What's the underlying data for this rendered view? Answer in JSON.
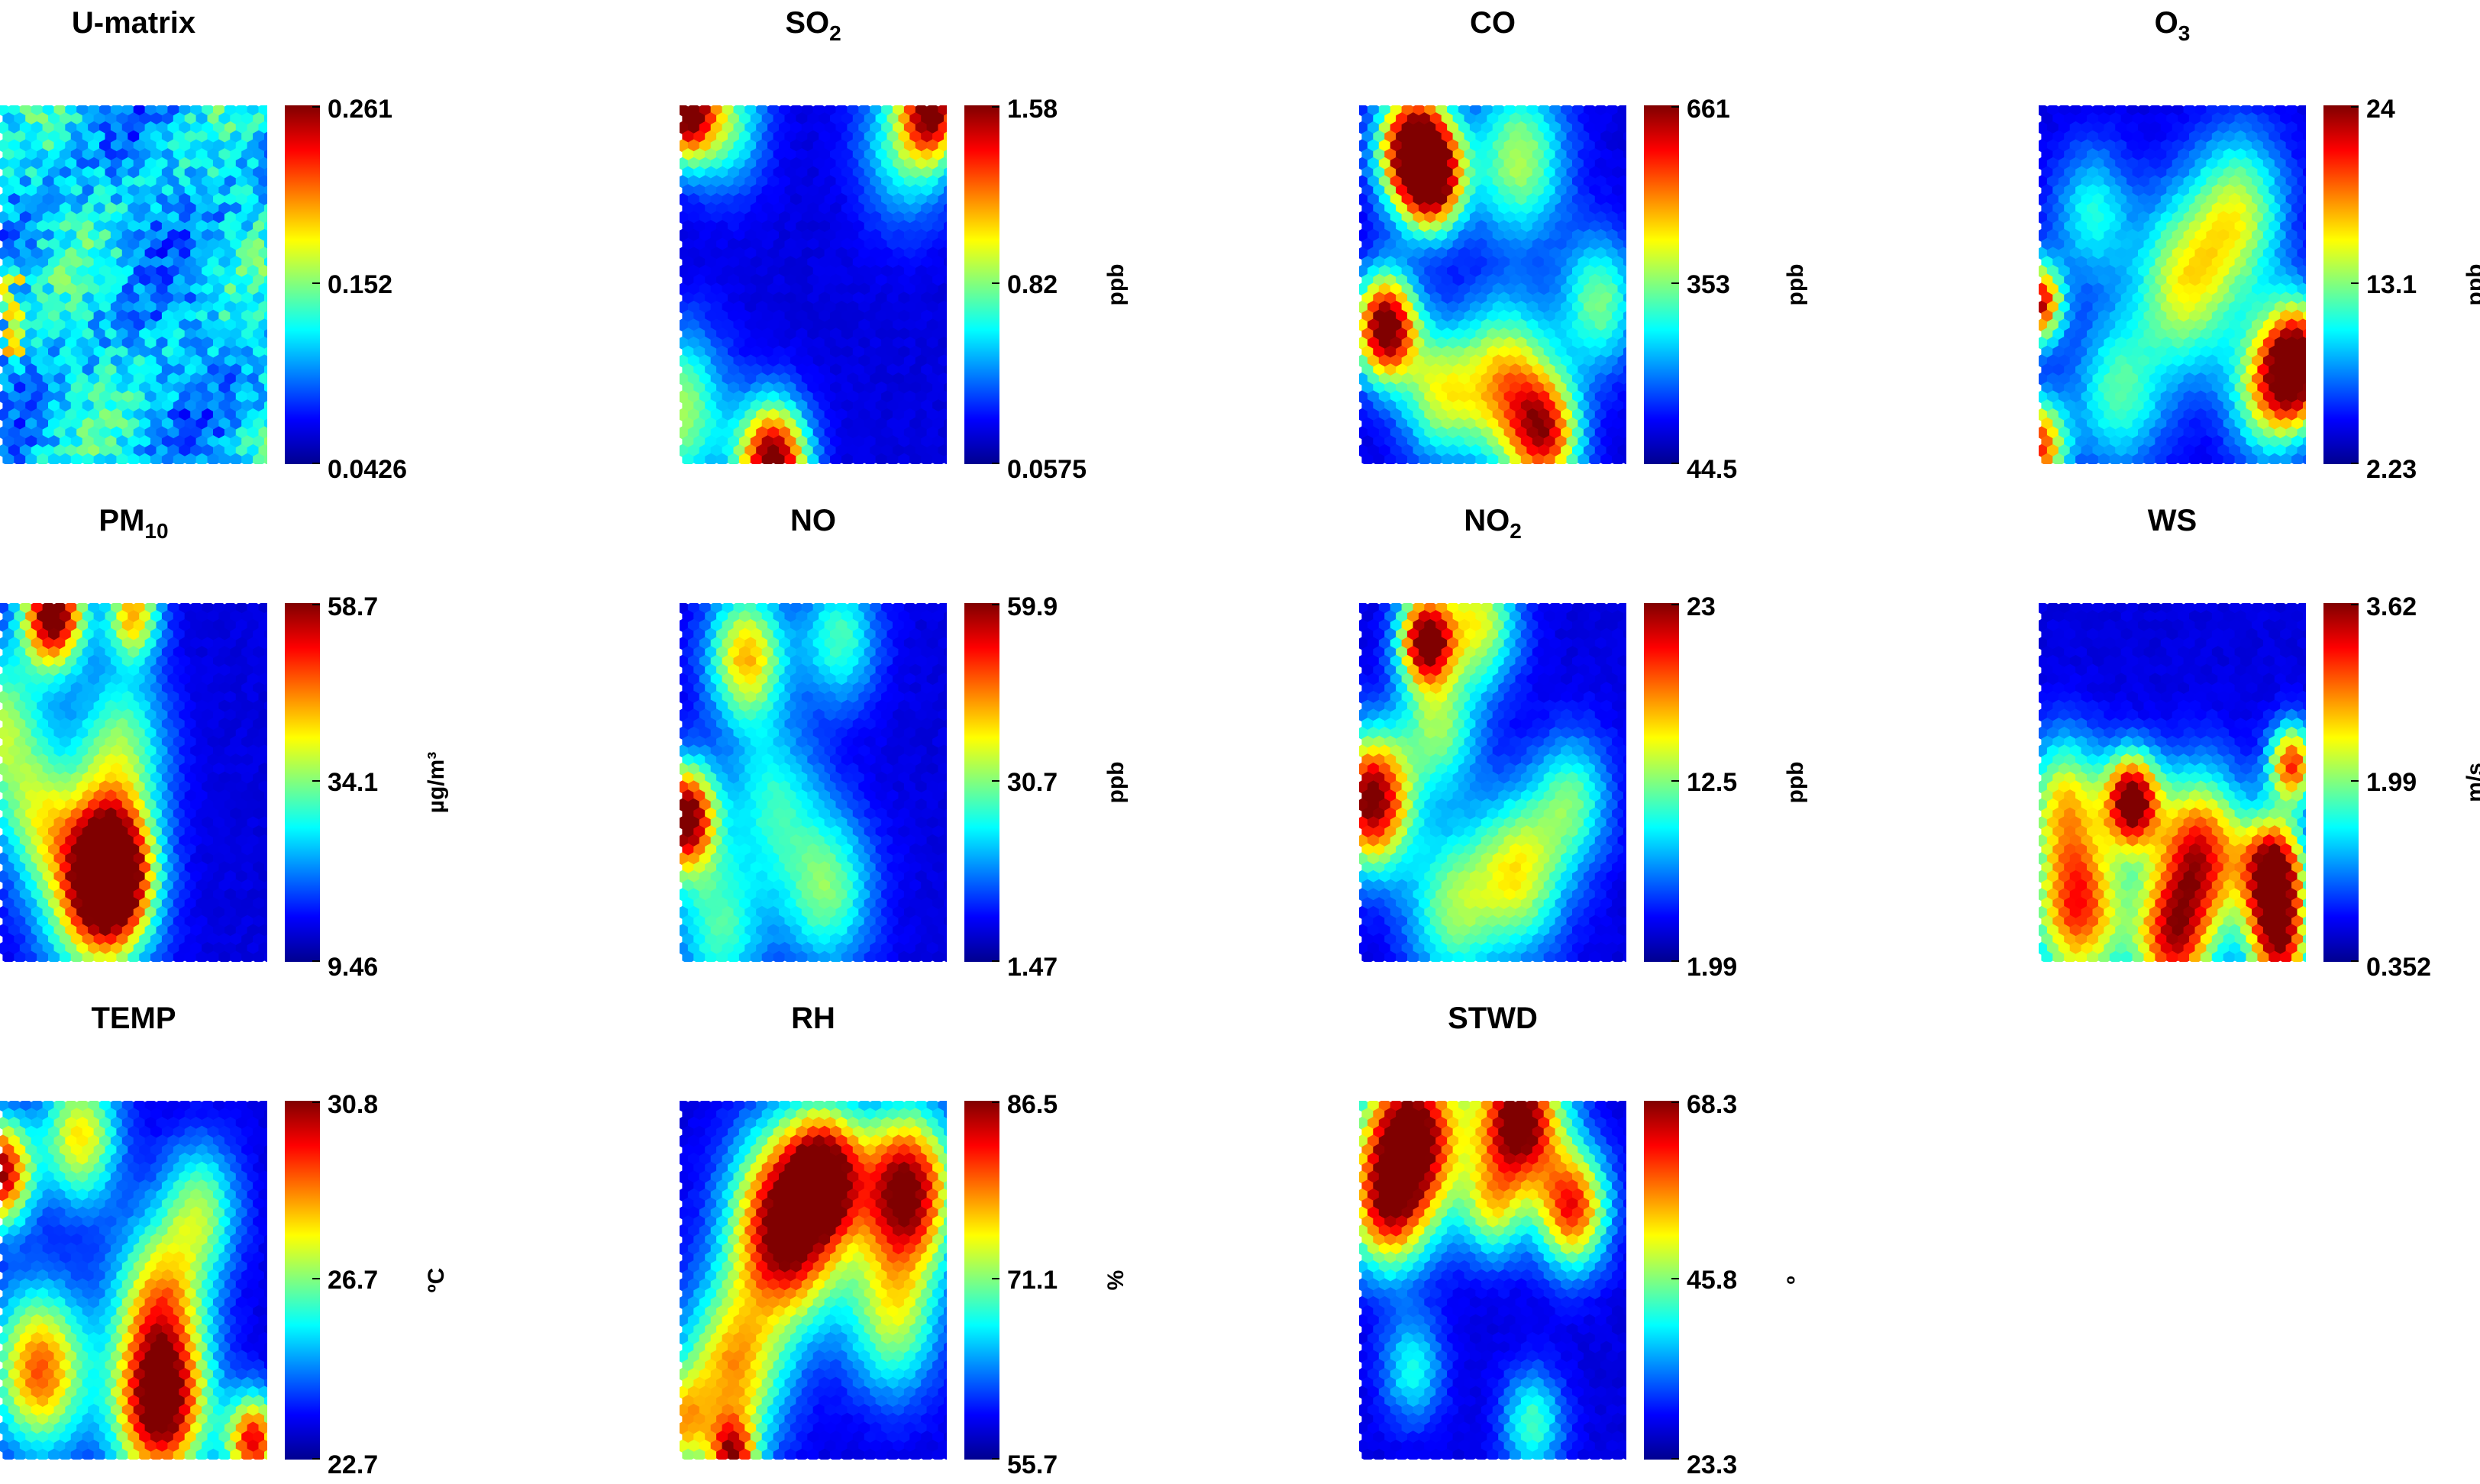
{
  "chart_data": [
    {
      "type": "heatmap",
      "title": "U-matrix",
      "title_sub": "",
      "unit": "",
      "colorbar_ticks": [
        "0.261",
        "0.152",
        "0.0426"
      ],
      "range": [
        0.0426,
        0.261
      ],
      "colormap": "jet",
      "blobs": []
    },
    {
      "type": "heatmap",
      "title": "SO",
      "title_sub": "2",
      "unit": "ppb",
      "colorbar_ticks": [
        "1.58",
        "0.82",
        "0.0575"
      ],
      "range": [
        0.0575,
        1.58
      ],
      "colormap": "jet",
      "blobs": [
        [
          0.02,
          0.0,
          1.0,
          0.08
        ],
        [
          0.95,
          0.0,
          0.8,
          0.08
        ],
        [
          0.35,
          1.0,
          1.0,
          0.09
        ],
        [
          0.0,
          0.85,
          0.45,
          0.12
        ],
        [
          0.85,
          0.1,
          0.35,
          0.12
        ],
        [
          0.18,
          0.05,
          0.35,
          0.1
        ]
      ]
    },
    {
      "type": "heatmap",
      "title": "CO",
      "title_sub": "",
      "unit": "ppb",
      "colorbar_ticks": [
        "661",
        "353",
        "44.5"
      ],
      "range": [
        44.5,
        661
      ],
      "colormap": "jet",
      "blobs": [
        [
          0.2,
          0.12,
          0.95,
          0.09
        ],
        [
          0.28,
          0.2,
          0.85,
          0.08
        ],
        [
          0.1,
          0.62,
          1.0,
          0.08
        ],
        [
          0.55,
          0.78,
          0.6,
          0.12
        ],
        [
          0.7,
          0.92,
          0.7,
          0.09
        ],
        [
          0.6,
          0.15,
          0.45,
          0.12
        ],
        [
          0.3,
          0.8,
          0.45,
          0.1
        ],
        [
          0.9,
          0.55,
          0.4,
          0.1
        ]
      ]
    },
    {
      "type": "heatmap",
      "title": "O",
      "title_sub": "3",
      "unit": "ppb",
      "colorbar_ticks": [
        "24",
        "13.1",
        "2.23"
      ],
      "range": [
        2.23,
        24
      ],
      "colormap": "jet",
      "blobs": [
        [
          0.97,
          0.72,
          1.0,
          0.09
        ],
        [
          0.0,
          0.55,
          0.85,
          0.06
        ],
        [
          0.55,
          0.5,
          0.5,
          0.13
        ],
        [
          0.75,
          0.3,
          0.45,
          0.12
        ],
        [
          0.0,
          0.95,
          0.75,
          0.07
        ],
        [
          0.3,
          0.8,
          0.35,
          0.12
        ],
        [
          0.85,
          0.8,
          0.45,
          0.1
        ],
        [
          0.2,
          0.3,
          0.3,
          0.1
        ]
      ]
    },
    {
      "type": "heatmap",
      "title": "PM",
      "title_sub": "10",
      "unit": "µg/m³",
      "colorbar_ticks": [
        "58.7",
        "34.1",
        "9.46"
      ],
      "range": [
        9.46,
        58.7
      ],
      "colormap": "jet",
      "blobs": [
        [
          0.2,
          0.03,
          1.0,
          0.08
        ],
        [
          0.5,
          0.03,
          0.6,
          0.07
        ],
        [
          0.42,
          0.75,
          1.0,
          0.1
        ],
        [
          0.35,
          0.8,
          0.6,
          0.14
        ],
        [
          0.0,
          0.35,
          0.45,
          0.12
        ],
        [
          0.45,
          0.4,
          0.4,
          0.12
        ],
        [
          0.15,
          0.6,
          0.35,
          0.1
        ]
      ]
    },
    {
      "type": "heatmap",
      "title": "NO",
      "title_sub": "",
      "unit": "ppb",
      "colorbar_ticks": [
        "59.9",
        "30.7",
        "1.47"
      ],
      "range": [
        1.47,
        59.9
      ],
      "colormap": "jet",
      "blobs": [
        [
          0.02,
          0.6,
          1.0,
          0.08
        ],
        [
          0.25,
          0.15,
          0.6,
          0.1
        ],
        [
          0.55,
          0.8,
          0.4,
          0.12
        ],
        [
          0.15,
          0.9,
          0.35,
          0.12
        ],
        [
          0.6,
          0.1,
          0.35,
          0.1
        ],
        [
          0.35,
          0.55,
          0.3,
          0.12
        ]
      ]
    },
    {
      "type": "heatmap",
      "title": "NO",
      "title_sub": "2",
      "unit": "ppb",
      "colorbar_ticks": [
        "23",
        "12.5",
        "1.99"
      ],
      "range": [
        1.99,
        23
      ],
      "colormap": "jet",
      "blobs": [
        [
          0.25,
          0.1,
          0.95,
          0.07
        ],
        [
          0.05,
          0.55,
          0.95,
          0.1
        ],
        [
          0.45,
          0.05,
          0.5,
          0.1
        ],
        [
          0.6,
          0.75,
          0.5,
          0.12
        ],
        [
          0.35,
          0.85,
          0.4,
          0.12
        ],
        [
          0.8,
          0.55,
          0.35,
          0.1
        ],
        [
          0.3,
          0.35,
          0.4,
          0.1
        ]
      ]
    },
    {
      "type": "heatmap",
      "title": "WS",
      "title_sub": "",
      "unit": "m/s",
      "colorbar_ticks": [
        "3.62",
        "1.99",
        "0.352"
      ],
      "range": [
        0.352,
        3.62
      ],
      "colormap": "jet",
      "blobs": [
        [
          0.35,
          0.55,
          0.95,
          0.07
        ],
        [
          0.88,
          0.75,
          1.0,
          0.08
        ],
        [
          0.6,
          0.7,
          0.8,
          0.12
        ],
        [
          0.15,
          0.85,
          0.75,
          0.12
        ],
        [
          0.5,
          0.95,
          0.7,
          0.1
        ],
        [
          0.95,
          0.45,
          0.75,
          0.06
        ],
        [
          0.9,
          0.95,
          0.8,
          0.08
        ],
        [
          0.1,
          0.55,
          0.5,
          0.1
        ]
      ]
    },
    {
      "type": "heatmap",
      "title": "TEMP",
      "title_sub": "",
      "unit": "ºC",
      "colorbar_ticks": [
        "30.8",
        "26.7",
        "22.7"
      ],
      "range": [
        22.7,
        30.8
      ],
      "colormap": "jet",
      "blobs": [
        [
          0.6,
          0.85,
          1.0,
          0.12
        ],
        [
          0.0,
          0.2,
          0.9,
          0.08
        ],
        [
          0.3,
          0.1,
          0.55,
          0.1
        ],
        [
          0.15,
          0.75,
          0.7,
          0.12
        ],
        [
          0.6,
          0.55,
          0.55,
          0.12
        ],
        [
          0.95,
          0.95,
          0.8,
          0.07
        ],
        [
          0.75,
          0.3,
          0.4,
          0.1
        ]
      ]
    },
    {
      "type": "heatmap",
      "title": "RH",
      "title_sub": "",
      "unit": "%",
      "colorbar_ticks": [
        "86.5",
        "71.1",
        "55.7"
      ],
      "range": [
        55.7,
        86.5
      ],
      "colormap": "jet",
      "blobs": [
        [
          0.4,
          0.35,
          1.0,
          0.14
        ],
        [
          0.85,
          0.25,
          0.95,
          0.12
        ],
        [
          0.55,
          0.2,
          0.75,
          0.1
        ],
        [
          0.2,
          0.75,
          0.6,
          0.13
        ],
        [
          0.0,
          0.9,
          0.5,
          0.08
        ],
        [
          0.8,
          0.6,
          0.45,
          0.12
        ],
        [
          0.2,
          1.0,
          0.7,
          0.06
        ]
      ]
    },
    {
      "type": "heatmap",
      "title": "STWD",
      "title_sub": "",
      "unit": "º",
      "colorbar_ticks": [
        "68.3",
        "45.8",
        "23.3"
      ],
      "range": [
        23.3,
        68.3
      ],
      "colormap": "jet",
      "blobs": [
        [
          0.2,
          0.1,
          1.0,
          0.13
        ],
        [
          0.6,
          0.05,
          1.0,
          0.11
        ],
        [
          0.8,
          0.3,
          0.75,
          0.09
        ],
        [
          0.1,
          0.3,
          0.6,
          0.1
        ],
        [
          0.5,
          0.3,
          0.4,
          0.08
        ],
        [
          0.65,
          0.9,
          0.35,
          0.08
        ],
        [
          0.2,
          0.75,
          0.3,
          0.08
        ]
      ]
    }
  ]
}
